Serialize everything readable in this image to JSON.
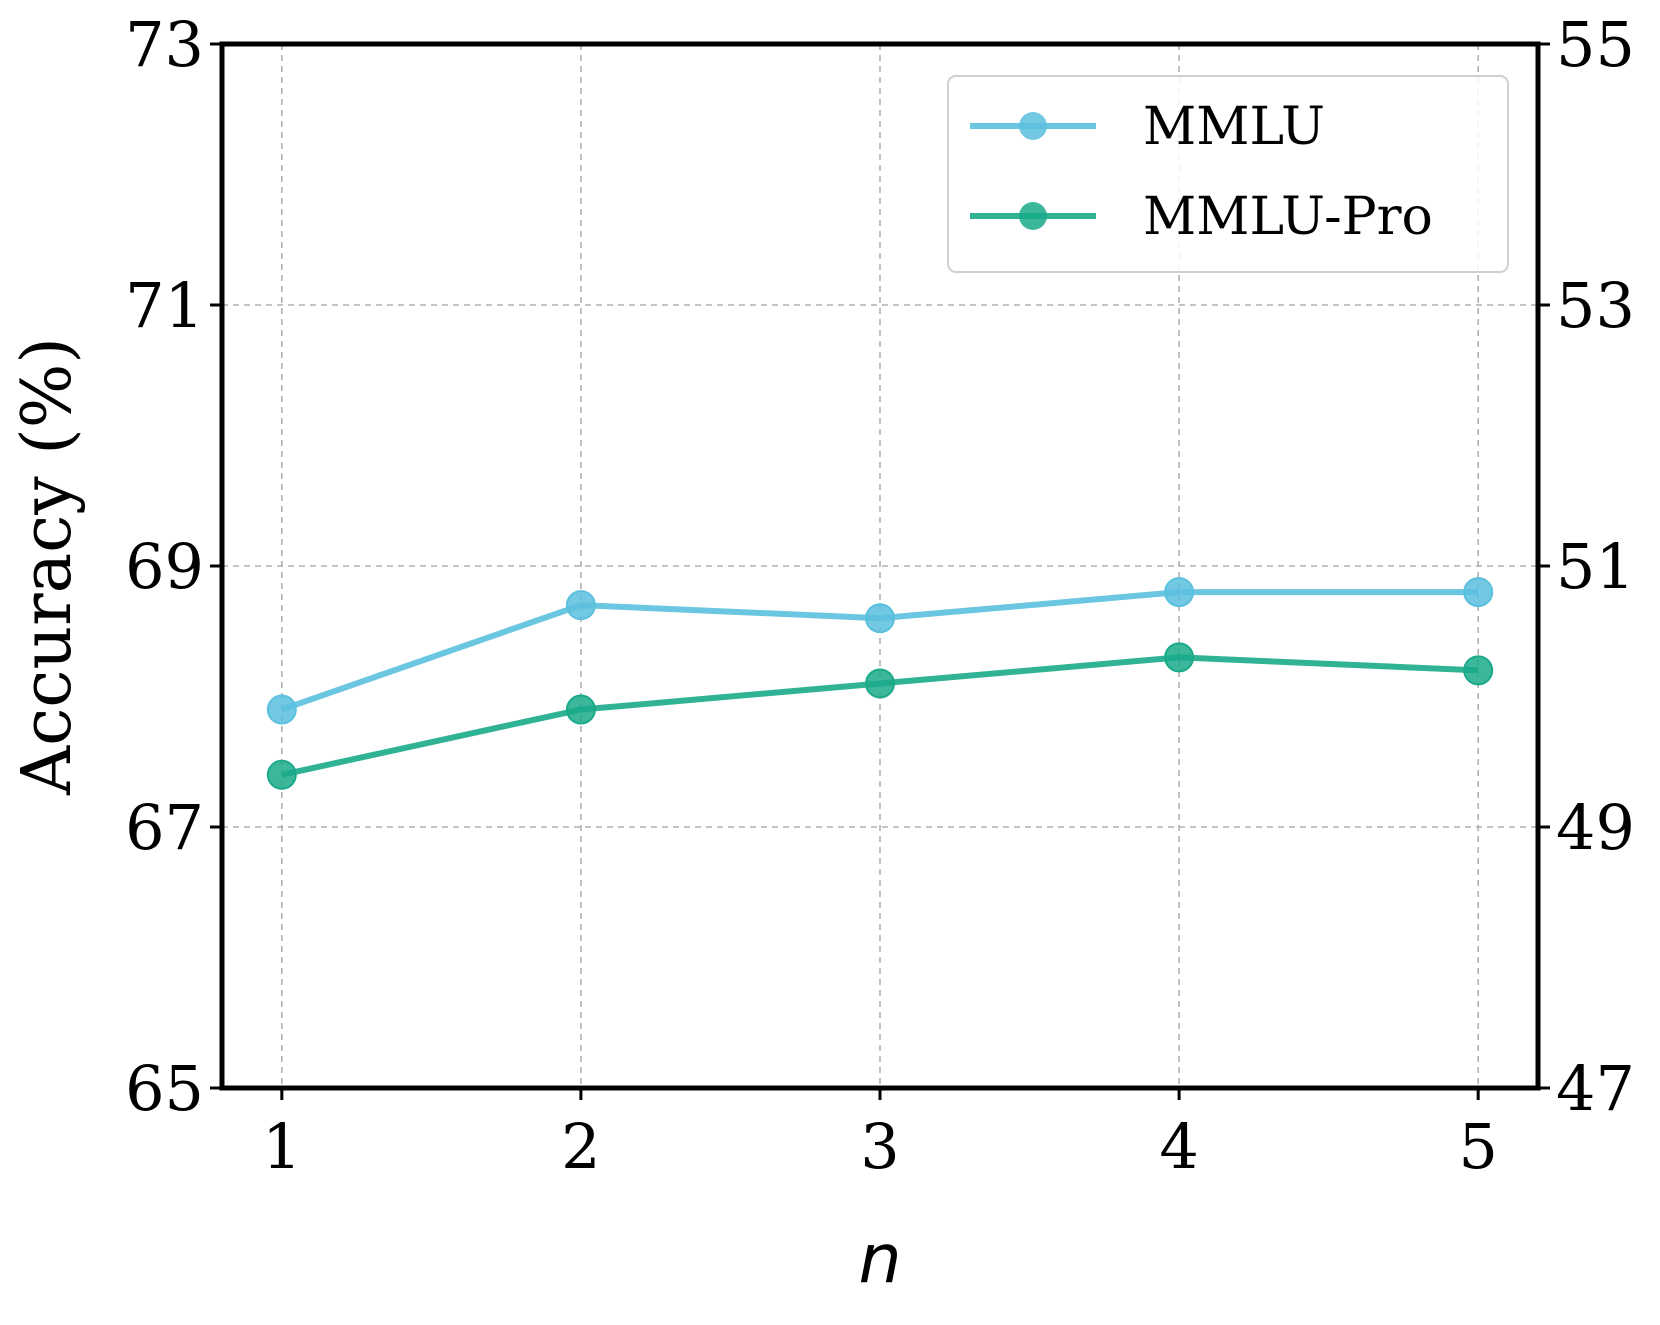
{
  "chart_data": {
    "type": "line",
    "title": "",
    "xlabel": "n",
    "ylabel": "Accuracy (%)",
    "x": [
      1,
      2,
      3,
      4,
      5
    ],
    "xticks": [
      "1",
      "2",
      "3",
      "4",
      "5"
    ],
    "xlim": [
      0.8,
      5.2
    ],
    "ylim_left": [
      65,
      73
    ],
    "ylim_right": [
      47,
      55
    ],
    "yticks_left": [
      "65",
      "67",
      "69",
      "71",
      "73"
    ],
    "yticks_right": [
      "47",
      "49",
      "51",
      "53",
      "55"
    ],
    "grid": true,
    "legend_position": "top-right",
    "series": [
      {
        "name": "MMLU",
        "axis": "left",
        "color": "#5bc0de",
        "values": [
          67.9,
          68.7,
          68.6,
          68.8,
          68.8
        ]
      },
      {
        "name": "MMLU-Pro",
        "axis": "right",
        "color": "#1aaa8a",
        "values": [
          49.4,
          49.9,
          50.1,
          50.3,
          50.2
        ]
      }
    ]
  }
}
